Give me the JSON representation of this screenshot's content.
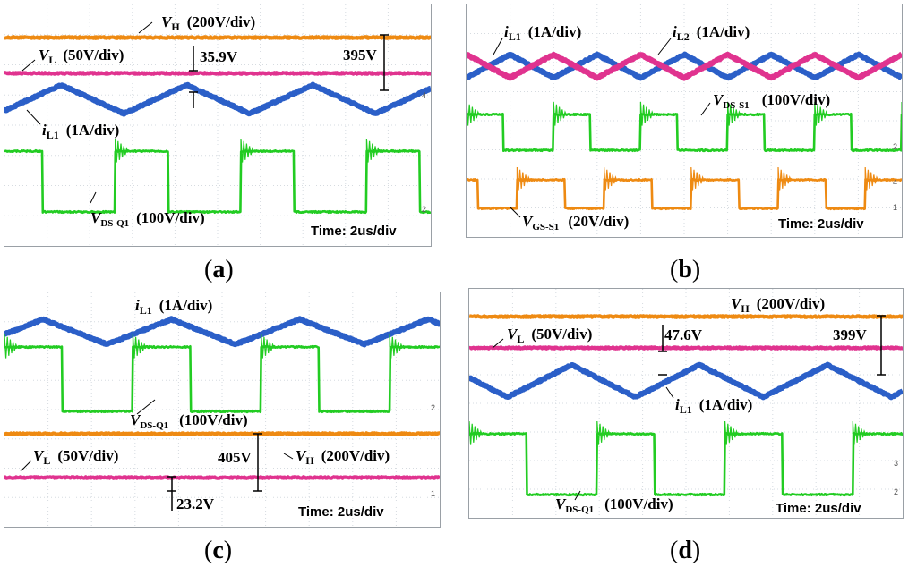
{
  "colors": {
    "vh": "#ee8a12",
    "vl": "#e0338f",
    "il": "#2b5fc8",
    "il2": "#e0338f",
    "vds": "#22cc22",
    "vgs": "#ee8a12",
    "grid": "#d6dbe0",
    "frame": "#9aa0a6"
  },
  "captions": {
    "a": "a",
    "b": "b",
    "c": "c",
    "d": "d"
  },
  "panels": {
    "a": {
      "vh_name": "V",
      "vh_sub": "H",
      "vh_scale": "(200V/div)",
      "vl_name": "V",
      "vl_sub": "L",
      "vl_scale": "(50V/div)",
      "vl_meas": "35.9V",
      "vh_meas": "395V",
      "il_name": "i",
      "il_sub": "L1",
      "il_scale": "(1A/div)",
      "vds_name": "V",
      "vds_sub": "DS-Q1",
      "vds_scale": "(100V/div)",
      "time": "Time: 2us/div",
      "ch_markers": [
        "4",
        "2"
      ]
    },
    "b": {
      "il1_name": "i",
      "il1_sub": "L1",
      "il1_scale": "(1A/div)",
      "il2_name": "i",
      "il2_sub": "L2",
      "il2_scale": "(1A/div)",
      "vds_name": "V",
      "vds_sub": "DS-S1",
      "vds_scale": "(100V/div)",
      "vgs_name": "V",
      "vgs_sub": "GS-S1",
      "vgs_scale": "(20V/div)",
      "time": "Time: 2us/div",
      "ch_markers": [
        "2",
        "4",
        "1"
      ]
    },
    "c": {
      "il_name": "i",
      "il_sub": "L1",
      "il_scale": "(1A/div)",
      "vds_name": "V",
      "vds_sub": "DS-Q1",
      "vds_scale": "(100V/div)",
      "vl_name": "V",
      "vl_sub": "L",
      "vl_scale": "(50V/div)",
      "vh_name": "V",
      "vh_sub": "H",
      "vh_scale": "(200V/div)",
      "vh_meas": "405V",
      "vl_meas": "23.2V",
      "time": "Time: 2us/div",
      "ch_markers": [
        "2",
        "1"
      ]
    },
    "d": {
      "vh_name": "V",
      "vh_sub": "H",
      "vh_scale": "(200V/div)",
      "vl_name": "V",
      "vl_sub": "L",
      "vl_scale": "(50V/div)",
      "vl_meas": "47.6V",
      "vh_meas": "399V",
      "il_name": "i",
      "il_sub": "L1",
      "il_scale": "(1A/div)",
      "vds_name": "V",
      "vds_sub": "DS-Q1",
      "vds_scale": "(100V/div)",
      "time": "Time: 2us/div",
      "ch_markers": [
        "3",
        "2"
      ]
    }
  },
  "chart_data": [
    {
      "panel": "a",
      "type": "line",
      "title": "(a)",
      "xlabel": "Time: 2us/div",
      "x_range_us": [
        0,
        20
      ],
      "series": [
        {
          "name": "V_H",
          "kind": "dc",
          "scale": "200V/div",
          "value_V": 395
        },
        {
          "name": "V_L",
          "kind": "dc",
          "scale": "50V/div",
          "value_V": 35.9
        },
        {
          "name": "i_L1",
          "kind": "triangle",
          "scale": "1A/div",
          "period_us": 5.9,
          "phase": 0.05
        },
        {
          "name": "V_DS-Q1",
          "kind": "square",
          "scale": "100V/div",
          "period_us": 5.9,
          "duty_high": 0.42,
          "phase": 0.12
        }
      ]
    },
    {
      "panel": "b",
      "type": "line",
      "title": "(b)",
      "xlabel": "Time: 2us/div",
      "x_range_us": [
        0,
        20
      ],
      "series": [
        {
          "name": "i_L1",
          "kind": "triangle",
          "scale": "1A/div",
          "period_us": 4.0,
          "phase": 0.0
        },
        {
          "name": "i_L2",
          "kind": "triangle",
          "scale": "1A/div",
          "period_us": 4.0,
          "phase": 0.5
        },
        {
          "name": "V_DS-S1",
          "kind": "square",
          "scale": "100V/div",
          "period_us": 4.0,
          "duty_high": 0.42,
          "phase": 0.0
        },
        {
          "name": "V_GS-S1",
          "kind": "square",
          "scale": "20V/div",
          "period_us": 4.0,
          "duty_high": 0.55,
          "phase": 0.42
        }
      ]
    },
    {
      "panel": "c",
      "type": "line",
      "title": "(c)",
      "xlabel": "Time: 2us/div",
      "x_range_us": [
        0,
        20
      ],
      "series": [
        {
          "name": "i_L1",
          "kind": "triangle",
          "scale": "1A/div",
          "period_us": 5.9,
          "phase": 0.2
        },
        {
          "name": "V_DS-Q1",
          "kind": "square",
          "scale": "100V/div",
          "period_us": 5.9,
          "duty_high": 0.45,
          "phase": 0.0
        },
        {
          "name": "V_H",
          "kind": "dc",
          "scale": "200V/div",
          "value_V": 405
        },
        {
          "name": "V_L",
          "kind": "dc",
          "scale": "50V/div",
          "value_V": 23.2
        }
      ]
    },
    {
      "panel": "d",
      "type": "line",
      "title": "(d)",
      "xlabel": "Time: 2us/div",
      "x_range_us": [
        0,
        20
      ],
      "series": [
        {
          "name": "V_H",
          "kind": "dc",
          "scale": "200V/div",
          "value_V": 399
        },
        {
          "name": "V_L",
          "kind": "dc",
          "scale": "50V/div",
          "value_V": 47.6
        },
        {
          "name": "i_L1",
          "kind": "triangle",
          "scale": "1A/div",
          "period_us": 5.9,
          "phase": 0.7
        },
        {
          "name": "V_DS-Q1",
          "kind": "square",
          "scale": "100V/div",
          "period_us": 5.9,
          "duty_high": 0.45,
          "phase": 0.0
        }
      ]
    }
  ]
}
